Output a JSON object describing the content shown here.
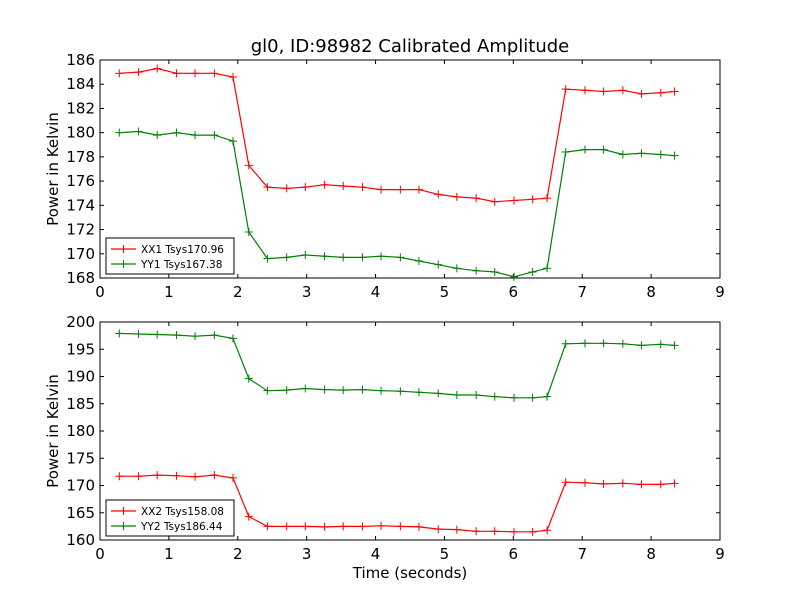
{
  "figure": {
    "title": "gl0, ID:98982 Calibrated Amplitude",
    "xlabel": "Time (seconds)"
  },
  "chart_data": [
    {
      "type": "line",
      "ylabel": "Power in Kelvin",
      "xlim": [
        0,
        9
      ],
      "ylim": [
        168,
        186
      ],
      "xticks": [
        "0",
        "1",
        "2",
        "3",
        "4",
        "5",
        "6",
        "7",
        "8",
        "9"
      ],
      "yticks": [
        "168",
        "170",
        "172",
        "174",
        "176",
        "178",
        "180",
        "182",
        "184",
        "186"
      ],
      "grid": false,
      "legend_position": "lower-left",
      "x": [
        0.28,
        0.56,
        0.83,
        1.11,
        1.38,
        1.66,
        1.93,
        2.16,
        2.43,
        2.71,
        2.98,
        3.26,
        3.53,
        3.81,
        4.08,
        4.36,
        4.63,
        4.91,
        5.18,
        5.46,
        5.73,
        6.01,
        6.28,
        6.49,
        6.76,
        7.04,
        7.31,
        7.59,
        7.86,
        8.14,
        8.34
      ],
      "series": [
        {
          "name": "XX1 Tsys170.96",
          "color": "#ff0000",
          "values": [
            184.9,
            185.0,
            185.3,
            184.9,
            184.9,
            184.9,
            184.6,
            177.3,
            175.5,
            175.4,
            175.5,
            175.7,
            175.6,
            175.5,
            175.3,
            175.3,
            175.3,
            174.9,
            174.7,
            174.6,
            174.3,
            174.4,
            174.5,
            174.6,
            183.6,
            183.5,
            183.4,
            183.5,
            183.2,
            183.3,
            183.4
          ]
        },
        {
          "name": "YY1 Tsys167.38",
          "color": "#008000",
          "values": [
            180.0,
            180.1,
            179.8,
            180.0,
            179.8,
            179.8,
            179.3,
            171.8,
            169.6,
            169.7,
            169.9,
            169.8,
            169.7,
            169.7,
            169.8,
            169.7,
            169.4,
            169.1,
            168.8,
            168.6,
            168.5,
            168.1,
            168.5,
            168.8,
            178.4,
            178.6,
            178.6,
            178.2,
            178.3,
            178.2,
            178.1
          ]
        }
      ]
    },
    {
      "type": "line",
      "ylabel": "Power in Kelvin",
      "xlim": [
        0,
        9
      ],
      "ylim": [
        160,
        200
      ],
      "xticks": [
        "0",
        "1",
        "2",
        "3",
        "4",
        "5",
        "6",
        "7",
        "8",
        "9"
      ],
      "yticks": [
        "160",
        "165",
        "170",
        "175",
        "180",
        "185",
        "190",
        "195",
        "200"
      ],
      "grid": false,
      "legend_position": "lower-left",
      "x": [
        0.28,
        0.56,
        0.83,
        1.11,
        1.38,
        1.66,
        1.93,
        2.16,
        2.43,
        2.71,
        2.98,
        3.26,
        3.53,
        3.81,
        4.08,
        4.36,
        4.63,
        4.91,
        5.18,
        5.46,
        5.73,
        6.01,
        6.28,
        6.49,
        6.76,
        7.04,
        7.31,
        7.59,
        7.86,
        8.14,
        8.34
      ],
      "series": [
        {
          "name": "XX2 Tsys158.08",
          "color": "#ff0000",
          "values": [
            171.7,
            171.7,
            171.9,
            171.8,
            171.6,
            171.9,
            171.4,
            164.3,
            162.5,
            162.5,
            162.5,
            162.4,
            162.5,
            162.5,
            162.6,
            162.5,
            162.4,
            162.0,
            161.9,
            161.6,
            161.6,
            161.5,
            161.5,
            161.8,
            170.6,
            170.5,
            170.3,
            170.4,
            170.2,
            170.2,
            170.4
          ]
        },
        {
          "name": "YY2 Tsys186.44",
          "color": "#008000",
          "values": [
            197.9,
            197.8,
            197.7,
            197.6,
            197.4,
            197.6,
            197.0,
            189.6,
            187.4,
            187.5,
            187.8,
            187.6,
            187.5,
            187.6,
            187.4,
            187.3,
            187.1,
            186.9,
            186.6,
            186.6,
            186.3,
            186.1,
            186.1,
            186.3,
            196.0,
            196.1,
            196.1,
            196.0,
            195.7,
            195.9,
            195.7
          ]
        }
      ]
    }
  ]
}
